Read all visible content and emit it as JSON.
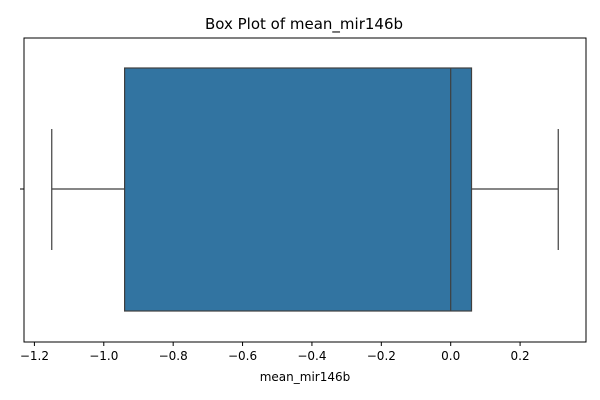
{
  "chart_data": {
    "type": "box",
    "title": "Box Plot of mean_mir146b",
    "xlabel": "mean_mir146b",
    "ylabel": "",
    "orientation": "horizontal",
    "xlim": [
      -1.23,
      0.39
    ],
    "xticks": [
      -1.2,
      -1.0,
      -0.8,
      -0.6,
      -0.4,
      -0.2,
      0.0,
      0.2
    ],
    "xtick_labels": [
      "−1.2",
      "−1.0",
      "−0.8",
      "−0.6",
      "−0.4",
      "−0.2",
      "0.0",
      "0.2"
    ],
    "box": {
      "whisker_low": -1.15,
      "q1": -0.94,
      "median": 0.0,
      "q3": 0.06,
      "whisker_high": 0.31
    },
    "grid": false,
    "colors": {
      "box_fill": "#3274a1",
      "line": "#3f3f3f",
      "axes": "#000000"
    }
  }
}
